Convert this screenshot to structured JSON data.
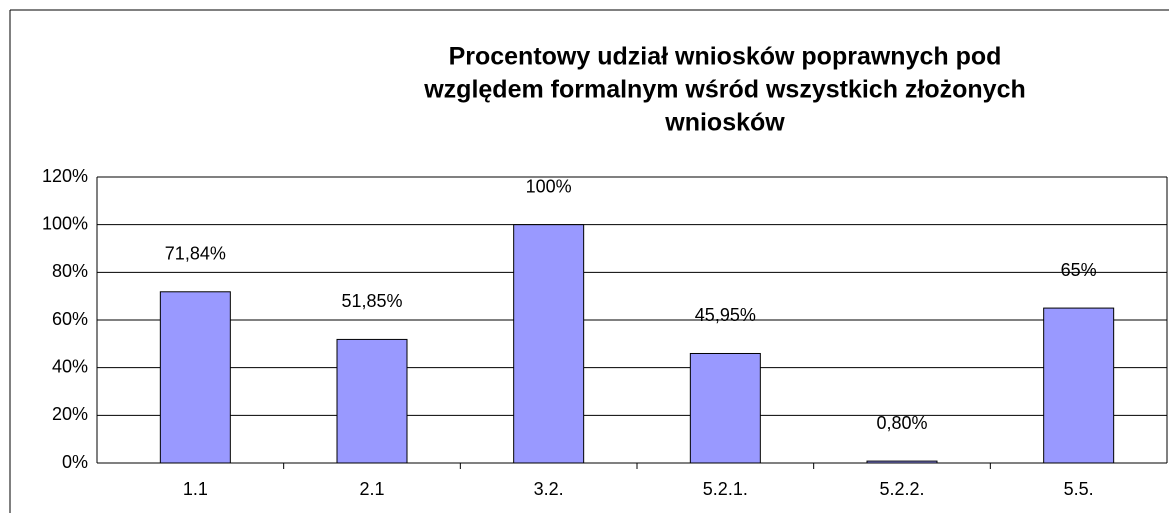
{
  "chart_data": {
    "type": "bar",
    "title": [
      "Procentowy udział wniosków poprawnych pod",
      "względem formalnym wśród wszystkich złożonych",
      "wniosków"
    ],
    "categories": [
      "1.1",
      "2.1",
      "3.2.",
      "5.2.1.",
      "5.2.2.",
      "5.5."
    ],
    "values": [
      71.84,
      51.85,
      100,
      45.95,
      0.8,
      65
    ],
    "value_labels": [
      "71,84%",
      "51,85%",
      "100%",
      "45,95%",
      "0,80%",
      "65%"
    ],
    "color": "#9999ff",
    "ylim": [
      0,
      120
    ],
    "yticks": [
      {
        "value": 0,
        "label": "0%"
      },
      {
        "value": 20,
        "label": "20%"
      },
      {
        "value": 40,
        "label": "40%"
      },
      {
        "value": 60,
        "label": "60%"
      },
      {
        "value": 80,
        "label": "80%"
      },
      {
        "value": 100,
        "label": "100%"
      },
      {
        "value": 120,
        "label": "120%"
      }
    ],
    "grid": true
  }
}
